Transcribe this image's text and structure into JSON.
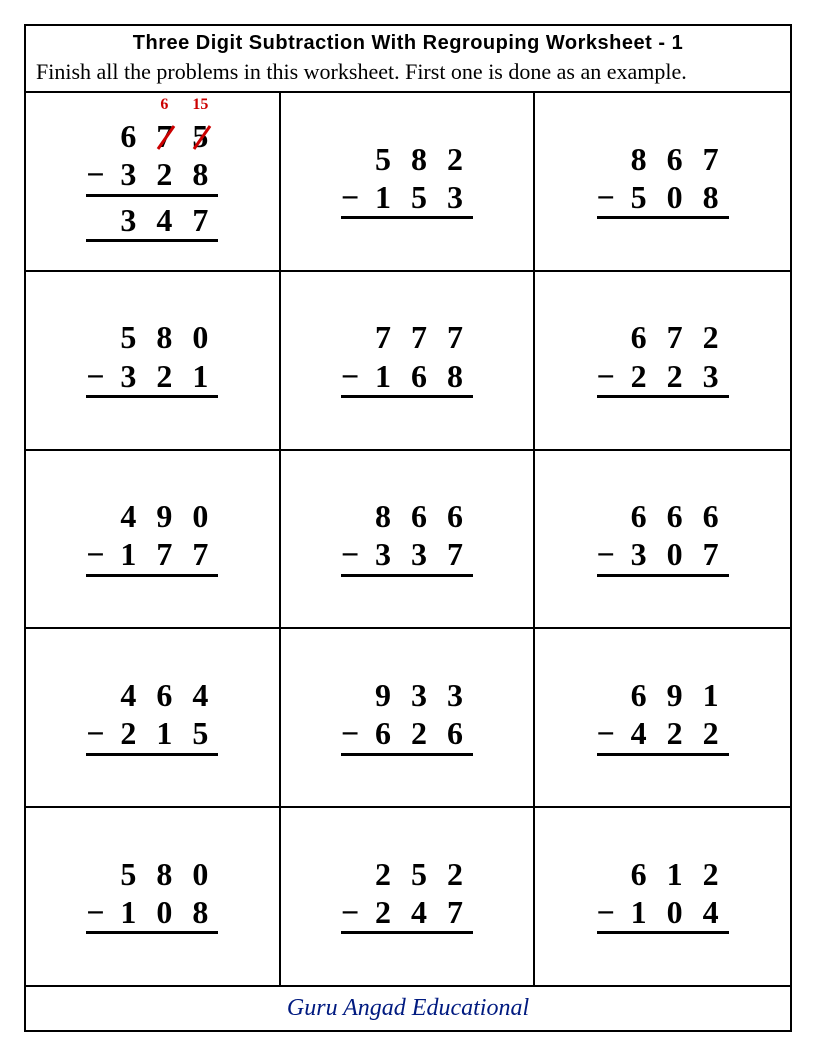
{
  "title": "Three Digit Subtraction With Regrouping Worksheet - 1",
  "instructions": "Finish all the problems in this worksheet. First one is done as an example.",
  "footer": "Guru Angad Educational",
  "colors": {
    "regroup": "#cc0000",
    "text": "#000000",
    "footer": "#001a80",
    "border": "#000000",
    "background": "#ffffff"
  },
  "fonts": {
    "title_family": "Arial Black",
    "body_family": "Georgia",
    "footer_family": "Brush Script MT",
    "digit_size": 32,
    "title_size": 20,
    "instructions_size": 22,
    "regroup_size": 16,
    "footer_size": 24
  },
  "problems": [
    {
      "top": [
        "6",
        "7",
        "5"
      ],
      "bottom": [
        "3",
        "2",
        "8"
      ],
      "answer": [
        "3",
        "4",
        "7"
      ],
      "regroup": [
        null,
        "6",
        "15"
      ],
      "struck": [
        false,
        true,
        true
      ],
      "show_answer": true
    },
    {
      "top": [
        "5",
        "8",
        "2"
      ],
      "bottom": [
        "1",
        "5",
        "3"
      ],
      "show_answer": false
    },
    {
      "top": [
        "8",
        "6",
        "7"
      ],
      "bottom": [
        "5",
        "0",
        "8"
      ],
      "show_answer": false
    },
    {
      "top": [
        "5",
        "8",
        "0"
      ],
      "bottom": [
        "3",
        "2",
        "1"
      ],
      "show_answer": false
    },
    {
      "top": [
        "7",
        "7",
        "7"
      ],
      "bottom": [
        "1",
        "6",
        "8"
      ],
      "show_answer": false
    },
    {
      "top": [
        "6",
        "7",
        "2"
      ],
      "bottom": [
        "2",
        "2",
        "3"
      ],
      "show_answer": false
    },
    {
      "top": [
        "4",
        "9",
        "0"
      ],
      "bottom": [
        "1",
        "7",
        "7"
      ],
      "show_answer": false
    },
    {
      "top": [
        "8",
        "6",
        "6"
      ],
      "bottom": [
        "3",
        "3",
        "7"
      ],
      "show_answer": false
    },
    {
      "top": [
        "6",
        "6",
        "6"
      ],
      "bottom": [
        "3",
        "0",
        "7"
      ],
      "show_answer": false
    },
    {
      "top": [
        "4",
        "6",
        "4"
      ],
      "bottom": [
        "2",
        "1",
        "5"
      ],
      "show_answer": false
    },
    {
      "top": [
        "9",
        "3",
        "3"
      ],
      "bottom": [
        "6",
        "2",
        "6"
      ],
      "show_answer": false
    },
    {
      "top": [
        "6",
        "9",
        "1"
      ],
      "bottom": [
        "4",
        "2",
        "2"
      ],
      "show_answer": false
    },
    {
      "top": [
        "5",
        "8",
        "0"
      ],
      "bottom": [
        "1",
        "0",
        "8"
      ],
      "show_answer": false
    },
    {
      "top": [
        "2",
        "5",
        "2"
      ],
      "bottom": [
        "2",
        "4",
        "7"
      ],
      "show_answer": false
    },
    {
      "top": [
        "6",
        "1",
        "2"
      ],
      "bottom": [
        "1",
        "0",
        "4"
      ],
      "show_answer": false
    }
  ]
}
